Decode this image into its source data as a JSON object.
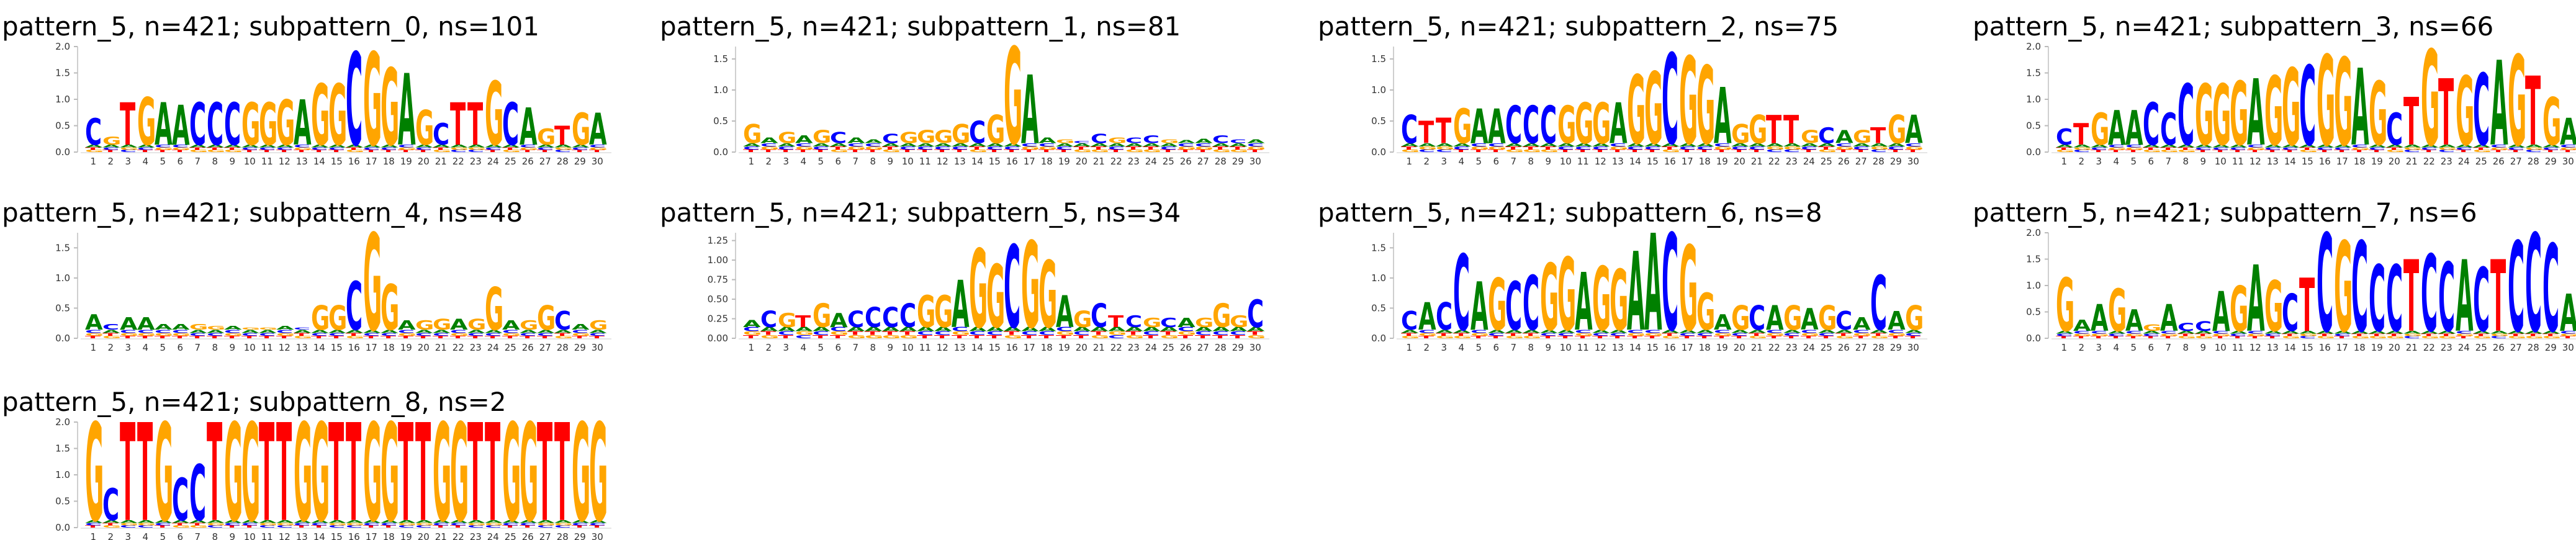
{
  "colors": {
    "A": "#008000",
    "C": "#0000ff",
    "G": "#ffa500",
    "T": "#ff0000"
  },
  "chart_data": [
    {
      "type": "logo",
      "title": "pattern_5, n=421; subpattern_0, ns=101",
      "yticks": [
        0.0,
        0.5,
        1.0,
        1.5,
        2.0
      ],
      "ylim": [
        0,
        2
      ],
      "x": [
        1,
        2,
        3,
        4,
        5,
        6,
        7,
        8,
        9,
        10,
        11,
        12,
        13,
        14,
        15,
        16,
        17,
        18,
        19,
        20,
        21,
        22,
        23,
        24,
        25,
        26,
        27,
        28,
        29,
        30
      ],
      "consensus": "CGTGAACCCGGGAGGCGGAGCTTGCAGTGA",
      "heights": [
        0.65,
        0.25,
        0.95,
        1.05,
        0.95,
        0.9,
        0.95,
        0.95,
        0.95,
        0.95,
        0.95,
        1.0,
        1.0,
        1.3,
        1.3,
        1.9,
        1.9,
        1.6,
        1.5,
        0.8,
        0.55,
        0.95,
        0.95,
        1.35,
        0.95,
        0.85,
        0.45,
        0.5,
        0.75,
        0.75
      ]
    },
    {
      "type": "logo",
      "title": "pattern_5, n=421; subpattern_1, ns=81",
      "yticks": [
        0.0,
        0.5,
        1.0,
        1.5
      ],
      "ylim": [
        0,
        1.7
      ],
      "x": [
        1,
        2,
        3,
        4,
        5,
        6,
        7,
        8,
        9,
        10,
        11,
        12,
        13,
        14,
        15,
        16,
        17,
        18,
        19,
        20,
        21,
        22,
        23,
        24,
        25,
        26,
        27,
        28,
        29,
        30
      ],
      "consensus": "GAGAGCAACGGGGCGGAAGCCGCCGAACCA",
      "heights": [
        0.45,
        0.15,
        0.3,
        0.2,
        0.35,
        0.3,
        0.15,
        0.1,
        0.25,
        0.3,
        0.35,
        0.35,
        0.45,
        0.5,
        0.6,
        1.7,
        1.25,
        0.15,
        0.1,
        0.05,
        0.25,
        0.15,
        0.15,
        0.2,
        0.1,
        0.08,
        0.12,
        0.2,
        0.1,
        0.1
      ]
    },
    {
      "type": "logo",
      "title": "pattern_5, n=421; subpattern_2, ns=75",
      "yticks": [
        0.0,
        0.5,
        1.0,
        1.5
      ],
      "ylim": [
        0,
        1.7
      ],
      "x": [
        1,
        2,
        3,
        4,
        5,
        6,
        7,
        8,
        9,
        10,
        11,
        12,
        13,
        14,
        15,
        16,
        17,
        18,
        19,
        20,
        21,
        22,
        23,
        24,
        25,
        26,
        27,
        28,
        29,
        30
      ],
      "consensus": "CTTGAACCCGGGAGGCGGAGGTTGCAGTGA",
      "heights": [
        0.6,
        0.5,
        0.55,
        0.7,
        0.7,
        0.7,
        0.75,
        0.75,
        0.75,
        0.75,
        0.8,
        0.8,
        0.8,
        1.25,
        1.3,
        1.6,
        1.55,
        1.4,
        1.05,
        0.45,
        0.6,
        0.6,
        0.6,
        0.35,
        0.4,
        0.35,
        0.35,
        0.4,
        0.6,
        0.6
      ]
    },
    {
      "type": "logo",
      "title": "pattern_5, n=421; subpattern_3, ns=66",
      "yticks": [
        0.0,
        0.5,
        1.0,
        1.5,
        2.0
      ],
      "ylim": [
        0,
        2
      ],
      "x": [
        1,
        2,
        3,
        4,
        5,
        6,
        7,
        8,
        9,
        10,
        11,
        12,
        13,
        14,
        15,
        16,
        17,
        18,
        19,
        20,
        21,
        22,
        23,
        24,
        25,
        26,
        27,
        28,
        29,
        30
      ],
      "consensus": "CTGAACCCGGGAGGCGGAGCTGTGCAGTGA",
      "heights": [
        0.45,
        0.55,
        0.75,
        0.8,
        0.8,
        0.95,
        0.75,
        1.3,
        1.3,
        1.3,
        1.35,
        1.4,
        1.45,
        1.6,
        1.65,
        1.85,
        1.8,
        1.6,
        1.35,
        0.75,
        1.05,
        1.95,
        1.4,
        1.45,
        1.5,
        1.75,
        1.85,
        1.45,
        1.05,
        0.65
      ]
    },
    {
      "type": "logo",
      "title": "pattern_5, n=421; subpattern_4, ns=48",
      "yticks": [
        0.0,
        0.5,
        1.0,
        1.5
      ],
      "ylim": [
        0,
        1.75
      ],
      "x": [
        1,
        2,
        3,
        4,
        5,
        6,
        7,
        8,
        9,
        10,
        11,
        12,
        13,
        14,
        15,
        16,
        17,
        18,
        19,
        20,
        21,
        22,
        23,
        24,
        25,
        26,
        27,
        28,
        29,
        30
      ],
      "consensus": "ACAAAAGGAGGACGGCGGAGGAGGAGGCAG",
      "heights": [
        0.4,
        0.15,
        0.35,
        0.35,
        0.15,
        0.15,
        0.15,
        0.1,
        0.1,
        0.05,
        0.05,
        0.1,
        0.05,
        0.55,
        0.55,
        0.95,
        1.75,
        0.9,
        0.25,
        0.25,
        0.3,
        0.3,
        0.3,
        0.85,
        0.25,
        0.25,
        0.55,
        0.45,
        0.15,
        0.25
      ]
    },
    {
      "type": "logo",
      "title": "pattern_5, n=421; subpattern_5, ns=34",
      "yticks": [
        0.0,
        0.25,
        0.5,
        0.75,
        1.0,
        1.25
      ],
      "ylim": [
        0,
        1.35
      ],
      "x": [
        1,
        2,
        3,
        4,
        5,
        6,
        7,
        8,
        9,
        10,
        11,
        12,
        13,
        14,
        15,
        16,
        17,
        18,
        19,
        20,
        21,
        22,
        23,
        24,
        25,
        26,
        27,
        28,
        29,
        30
      ],
      "consensus": "ACGTGACCCCGGAGGCGGAGCTCGCAGGGC",
      "heights": [
        0.15,
        0.35,
        0.3,
        0.25,
        0.45,
        0.3,
        0.35,
        0.4,
        0.4,
        0.45,
        0.55,
        0.55,
        0.75,
        1.15,
        0.95,
        1.2,
        1.25,
        1.0,
        0.55,
        0.35,
        0.45,
        0.25,
        0.25,
        0.2,
        0.2,
        0.2,
        0.2,
        0.45,
        0.25,
        0.5
      ]
    },
    {
      "type": "logo",
      "title": "pattern_5, n=421; subpattern_6, ns=8",
      "yticks": [
        0.0,
        0.5,
        1.0,
        1.5
      ],
      "ylim": [
        0,
        1.75
      ],
      "x": [
        1,
        2,
        3,
        4,
        5,
        6,
        7,
        8,
        9,
        10,
        11,
        12,
        13,
        14,
        15,
        16,
        17,
        18,
        19,
        20,
        21,
        22,
        23,
        24,
        25,
        26,
        27,
        28,
        29,
        30
      ],
      "consensus": "CACCAGCCGGAGGAACGGAGCAGAGCACAG",
      "heights": [
        0.45,
        0.6,
        0.6,
        1.4,
        0.95,
        1.0,
        0.95,
        1.05,
        1.25,
        1.35,
        1.1,
        1.2,
        1.15,
        1.45,
        1.75,
        1.75,
        1.55,
        0.75,
        0.4,
        0.55,
        0.55,
        0.55,
        0.55,
        0.5,
        0.55,
        0.45,
        0.35,
        1.05,
        0.45,
        0.55
      ]
    },
    {
      "type": "logo",
      "title": "pattern_5, n=421; subpattern_7, ns=6",
      "yticks": [
        0.0,
        0.5,
        1.0,
        1.5,
        2.0
      ],
      "ylim": [
        0,
        2
      ],
      "x": [
        1,
        2,
        3,
        4,
        5,
        6,
        7,
        8,
        9,
        10,
        11,
        12,
        13,
        14,
        15,
        16,
        17,
        18,
        19,
        20,
        21,
        22,
        23,
        24,
        25,
        26,
        27,
        28,
        29,
        30
      ],
      "consensus": "GAAGAGACCAGAGCTCGCCCTCCACTCCCA",
      "heights": [
        1.15,
        0.35,
        0.65,
        0.95,
        0.55,
        0.2,
        0.65,
        0.25,
        0.3,
        0.9,
        1.0,
        1.4,
        1.1,
        0.85,
        1.15,
        2.0,
        1.85,
        1.85,
        1.4,
        1.4,
        1.5,
        1.6,
        1.45,
        1.5,
        1.35,
        1.5,
        1.85,
        2.0,
        1.8,
        0.85
      ]
    },
    {
      "type": "logo",
      "title": "pattern_5, n=421; subpattern_8, ns=2",
      "yticks": [
        0.0,
        0.5,
        1.0,
        1.5,
        2.0
      ],
      "ylim": [
        0,
        2
      ],
      "x": [
        1,
        2,
        3,
        4,
        5,
        6,
        7,
        8,
        9,
        10,
        11,
        12,
        13,
        14,
        15,
        16,
        17,
        18,
        19,
        20,
        21,
        22,
        23,
        24,
        25,
        26,
        27,
        28,
        29,
        30
      ],
      "consensus": "GCTTGCCTGGTTGGTTGGTTGGTTGGTTGG",
      "heights": [
        2.0,
        0.75,
        2.0,
        2.0,
        2.0,
        0.95,
        1.2,
        2.0,
        2.0,
        2.0,
        2.0,
        2.0,
        2.0,
        2.0,
        2.0,
        2.0,
        2.0,
        2.0,
        2.0,
        2.0,
        2.0,
        2.0,
        2.0,
        2.0,
        2.0,
        2.0,
        2.0,
        2.0,
        2.0,
        2.0
      ]
    }
  ]
}
